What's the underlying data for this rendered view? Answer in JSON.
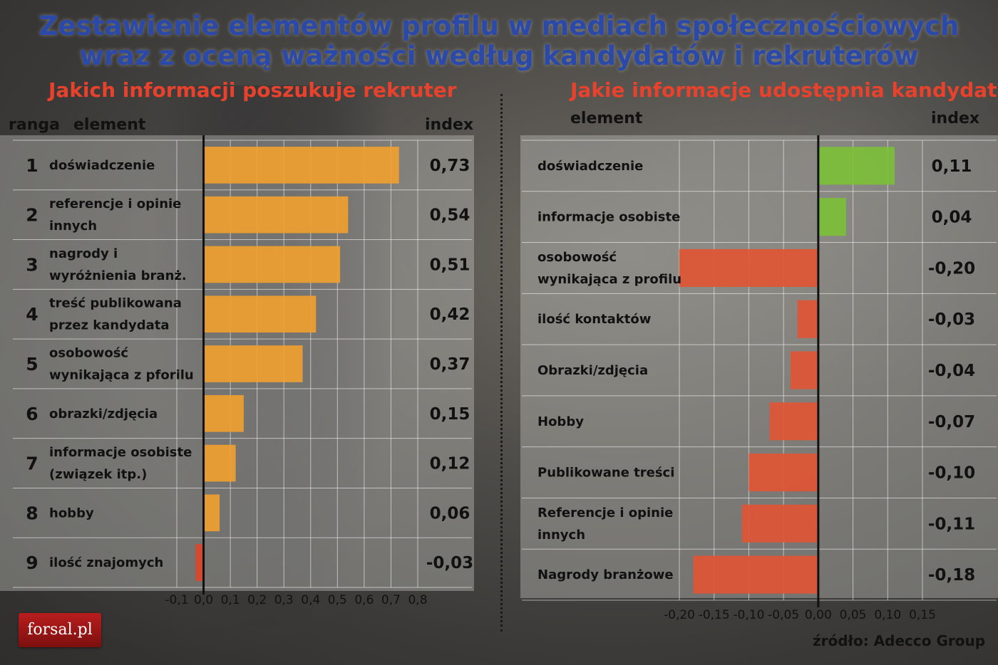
{
  "title_line1": "Zestawienie elementów profilu w mediach społecznościowych",
  "title_line2": "wraz z oceną ważności według kandydatów i rekruterów",
  "brand": "forsal.pl",
  "source": "źródło: Adecco Group",
  "chart_data": [
    {
      "type": "bar",
      "orientation": "horizontal",
      "title": "Jakich informacji poszukuje rekruter",
      "headers": {
        "rank": "ranga",
        "element": "element",
        "index": "index"
      },
      "ranks": [
        "1",
        "2",
        "3",
        "4",
        "5",
        "6",
        "7",
        "8",
        "9"
      ],
      "categories": [
        [
          "doświadczenie"
        ],
        [
          "referencje i opinie",
          "innych"
        ],
        [
          "nagrody i",
          "wyróżnienia branż."
        ],
        [
          "treść publikowana",
          "przez kandydata"
        ],
        [
          "osobowość",
          "wynikająca z pforilu"
        ],
        [
          "obrazki/zdjęcia"
        ],
        [
          "informacje osobiste",
          "(związek itp.)"
        ],
        [
          "hobby"
        ],
        [
          "ilość znajomych"
        ]
      ],
      "values": [
        0.73,
        0.54,
        0.51,
        0.42,
        0.37,
        0.15,
        0.12,
        0.06,
        -0.03
      ],
      "value_labels": [
        "0,73",
        "0,54",
        "0,51",
        "0,42",
        "0,37",
        "0,15",
        "0,12",
        "0,06",
        "-0,03"
      ],
      "xlim": [
        -0.1,
        0.8
      ],
      "xticks": [
        "-0,1",
        "0,0",
        "0,1",
        "0,2",
        "0,3",
        "0,4",
        "0,5",
        "0,6",
        "0,7",
        "0,8"
      ],
      "grid": true,
      "colors": {
        "positive": "#f0a030",
        "negative": "#d9472b"
      }
    },
    {
      "type": "bar",
      "orientation": "horizontal",
      "title": "Jakie informacje udostępnia kandydat",
      "headers": {
        "element": "element",
        "index": "index"
      },
      "categories": [
        [
          "doświadczenie"
        ],
        [
          "informacje osobiste"
        ],
        [
          "osobowość",
          "wynikająca z profilu"
        ],
        [
          "ilość kontaktów"
        ],
        [
          "Obrazki/zdjęcia"
        ],
        [
          "Hobby"
        ],
        [
          "Publikowane treści"
        ],
        [
          "Referencje i opinie",
          "innych"
        ],
        [
          "Nagrody branżowe"
        ]
      ],
      "values": [
        0.11,
        0.04,
        -0.2,
        -0.03,
        -0.04,
        -0.07,
        -0.1,
        -0.11,
        -0.18
      ],
      "value_labels": [
        "0,11",
        "0,04",
        "-0,20",
        "-0,03",
        "-0,04",
        "-0,07",
        "-0,10",
        "-0,11",
        "-0,18"
      ],
      "xlim": [
        -0.2,
        0.15
      ],
      "xticks": [
        "-0,20",
        "-0,15",
        "-0,10",
        "-0,05",
        "0,00",
        "0,05",
        "0,10",
        "0,15"
      ],
      "grid": true,
      "colors": {
        "positive": "#7cbf3a",
        "negative": "#e05535"
      }
    }
  ]
}
